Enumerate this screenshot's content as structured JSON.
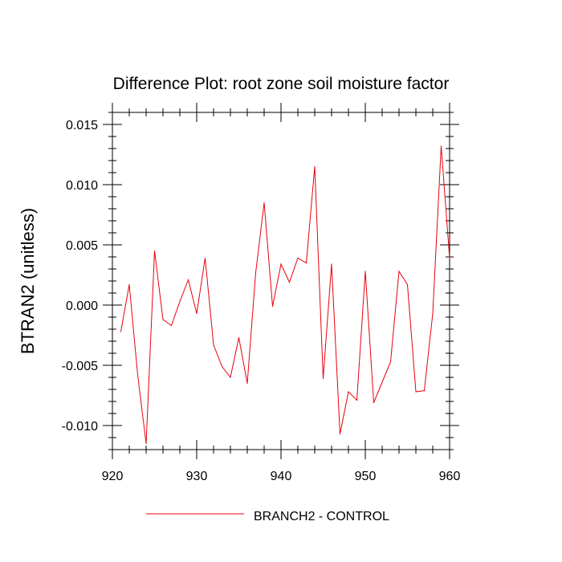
{
  "chart_data": {
    "type": "line",
    "title": "Difference Plot: root zone soil moisture factor",
    "xlabel": "",
    "ylabel": "BTRAN2  (unitless)",
    "xlim": [
      920,
      960
    ],
    "ylim": [
      -0.012,
      0.016
    ],
    "x_ticks": [
      920,
      930,
      940,
      950,
      960
    ],
    "x_tick_labels": [
      "920",
      "930",
      "940",
      "950",
      "960"
    ],
    "y_ticks": [
      -0.01,
      -0.005,
      0.0,
      0.005,
      0.01,
      0.015
    ],
    "y_tick_labels": [
      "-0.010",
      "-0.005",
      "0.000",
      "0.005",
      "0.010",
      "0.015"
    ],
    "grid": false,
    "legend_position": "bottom-center",
    "series": [
      {
        "name": "BRANCH2 - CONTROL",
        "color": "#e8000b",
        "x": [
          921,
          922,
          923,
          924,
          925,
          926,
          927,
          928,
          929,
          930,
          931,
          932,
          933,
          934,
          935,
          936,
          937,
          938,
          939,
          940,
          941,
          942,
          943,
          944,
          945,
          946,
          947,
          948,
          949,
          950,
          951,
          952,
          953,
          954,
          955,
          956,
          957,
          958,
          959,
          960
        ],
        "values": [
          -0.0022,
          0.0017,
          -0.0058,
          -0.0115,
          0.0045,
          -0.0012,
          -0.0017,
          0.0003,
          0.0021,
          -0.0007,
          0.0039,
          -0.0033,
          -0.0051,
          -0.006,
          -0.0027,
          -0.0065,
          0.0027,
          0.0085,
          -0.0001,
          0.0034,
          0.0019,
          0.0039,
          0.0035,
          0.0115,
          -0.0061,
          0.0034,
          -0.0107,
          -0.0072,
          -0.0079,
          0.0028,
          -0.0081,
          -0.0064,
          -0.0047,
          0.0028,
          0.0017,
          -0.0072,
          -0.0071,
          -0.0007,
          0.0132,
          0.0039
        ]
      }
    ]
  }
}
